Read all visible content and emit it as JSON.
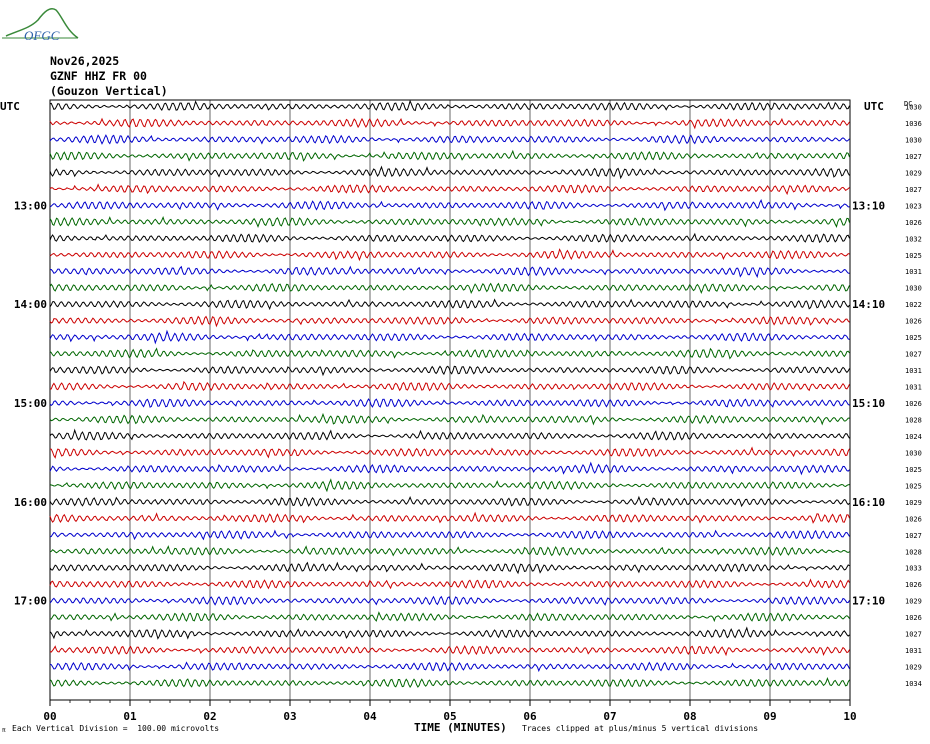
{
  "logo": {
    "text": "OFGC",
    "color": "#3a8a3a",
    "accent": "#2a5fa8"
  },
  "header": {
    "date": "Nov26,2025",
    "station": "GZNF HHZ FR 00",
    "location": "(Gouzon Vertical)"
  },
  "left_axis_label": "UTC",
  "right_axis_label": "UTC",
  "right_column_header": "DC",
  "footer": {
    "xlabel": "TIME (MINUTES)",
    "scale_note": "Each Vertical Division =  100.00 microvolts",
    "clip_note": "Traces clipped at plus/minus 5 vertical divisions",
    "corner_mark": "π"
  },
  "colors": {
    "trace_cycle": [
      "#000000",
      "#cc0000",
      "#0000cc",
      "#006600"
    ],
    "grid": "#000000"
  },
  "chart_data": {
    "type": "line",
    "title": "",
    "xlabel": "TIME (MINUTES)",
    "ylabel": "UTC",
    "xlim": [
      0,
      10
    ],
    "x_ticks": [
      "00",
      "01",
      "02",
      "03",
      "04",
      "05",
      "06",
      "07",
      "08",
      "09",
      "10"
    ],
    "left_time_labels": [
      {
        "row": 6,
        "label": "13:00"
      },
      {
        "row": 12,
        "label": "14:00"
      },
      {
        "row": 18,
        "label": "15:00"
      },
      {
        "row": 24,
        "label": "16:00"
      },
      {
        "row": 30,
        "label": "17:00"
      }
    ],
    "right_time_labels": [
      {
        "row": 6,
        "label": "13:10"
      },
      {
        "row": 12,
        "label": "14:10"
      },
      {
        "row": 18,
        "label": "15:10"
      },
      {
        "row": 24,
        "label": "16:10"
      },
      {
        "row": 30,
        "label": "17:10"
      }
    ],
    "dc_offsets": [
      1030,
      1036,
      1030,
      1027,
      1029,
      1027,
      1023,
      1026,
      1032,
      1025,
      1031,
      1030,
      1022,
      1026,
      1025,
      1027,
      1031,
      1031,
      1026,
      1028,
      1024,
      1030,
      1025,
      1025,
      1029,
      1026,
      1027,
      1028,
      1033,
      1026,
      1029,
      1026,
      1027,
      1031,
      1029,
      1034
    ],
    "trace_count": 36,
    "grid": true
  }
}
